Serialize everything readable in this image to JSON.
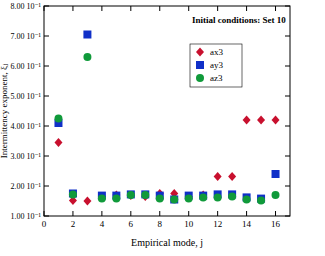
{
  "chart_data": {
    "type": "scatter",
    "title": "Initial conditions: Set 10",
    "x_label": "Empirical mode, j",
    "y_label": "Intermittency exponent, ξⱼ",
    "x": [
      1,
      2,
      3,
      4,
      5,
      6,
      7,
      8,
      9,
      10,
      11,
      12,
      13,
      14,
      15,
      16
    ],
    "series": [
      {
        "name": "ax3",
        "color": "#c8102e",
        "marker": "diamond",
        "values": [
          0.345,
          0.152,
          0.15,
          0.165,
          0.17,
          0.168,
          0.165,
          0.175,
          0.175,
          0.165,
          0.17,
          0.232,
          0.232,
          0.42,
          0.42,
          0.42
        ]
      },
      {
        "name": "ay3",
        "color": "#1030c8",
        "marker": "square",
        "values": [
          0.41,
          0.175,
          0.705,
          0.168,
          0.168,
          0.172,
          0.172,
          0.168,
          0.155,
          0.168,
          0.168,
          0.172,
          0.172,
          0.162,
          0.158,
          0.24
        ]
      },
      {
        "name": "az3",
        "color": "#109a3a",
        "marker": "circle",
        "values": [
          0.425,
          0.172,
          0.63,
          0.158,
          0.158,
          0.17,
          0.17,
          0.158,
          0.155,
          0.158,
          0.162,
          0.162,
          0.165,
          0.155,
          0.152,
          0.17
        ]
      }
    ],
    "xlim": [
      0,
      17
    ],
    "xticks": [
      0,
      2,
      4,
      6,
      8,
      10,
      12,
      14,
      16
    ],
    "ylim": [
      0.1,
      0.8
    ],
    "yticks": [
      {
        "value": 0.1,
        "label": "1.00 10⁻¹"
      },
      {
        "value": 0.2,
        "label": "2.00 10⁻¹"
      },
      {
        "value": 0.3,
        "label": "3.00 10⁻¹"
      },
      {
        "value": 0.4,
        "label": "4.00 10⁻¹"
      },
      {
        "value": 0.5,
        "label": "5.00 10⁻¹"
      },
      {
        "value": 0.6,
        "label": "6.00 10⁻¹"
      },
      {
        "value": 0.7,
        "label": "7.00 10⁻¹"
      },
      {
        "value": 0.8,
        "label": "8.00 10⁻¹"
      }
    ],
    "legend": "top-right",
    "grid": false
  }
}
